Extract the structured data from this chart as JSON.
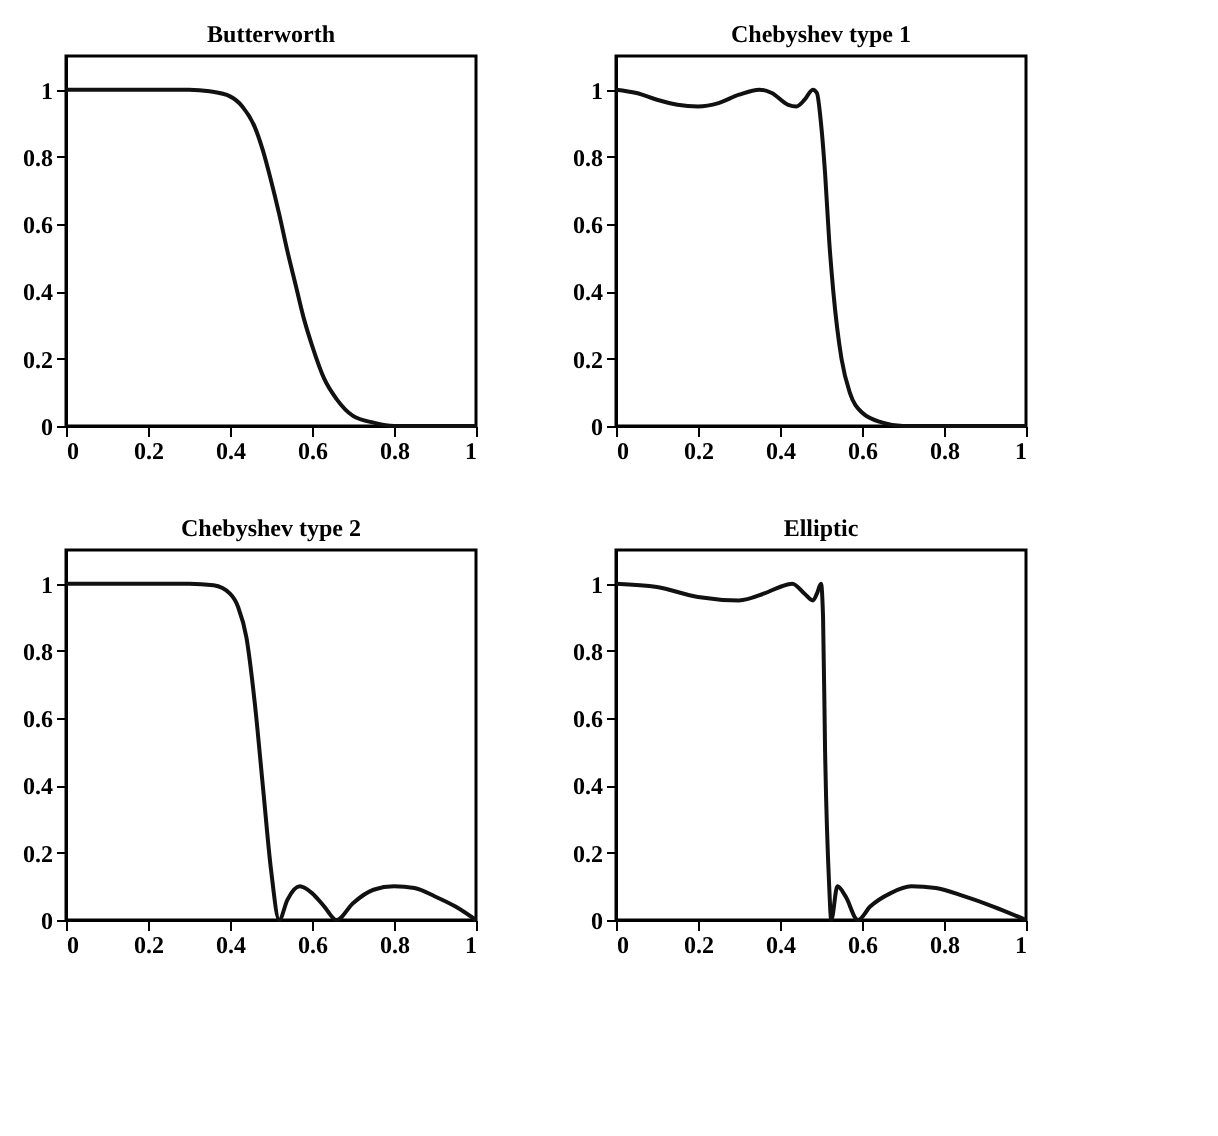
{
  "chart_data": [
    {
      "type": "line",
      "title": "Butterworth",
      "color": "#111111",
      "grid": false,
      "xlim": [
        0,
        1
      ],
      "ylim": [
        0,
        1.1
      ],
      "xticks": [
        0,
        0.2,
        0.4,
        0.6,
        0.8,
        1
      ],
      "yticks": [
        0,
        0.2,
        0.4,
        0.6,
        0.8,
        1
      ],
      "x": [
        0,
        0.1,
        0.2,
        0.3,
        0.35,
        0.4,
        0.43,
        0.46,
        0.48,
        0.5,
        0.52,
        0.54,
        0.56,
        0.58,
        0.6,
        0.63,
        0.66,
        0.7,
        0.75,
        0.8,
        0.9,
        1.0
      ],
      "values": [
        1,
        1,
        1,
        1,
        0.995,
        0.98,
        0.95,
        0.89,
        0.82,
        0.73,
        0.63,
        0.52,
        0.42,
        0.32,
        0.24,
        0.14,
        0.08,
        0.03,
        0.01,
        0,
        0,
        0
      ]
    },
    {
      "type": "line",
      "title": "Chebyshev type 1",
      "color": "#111111",
      "grid": false,
      "xlim": [
        0,
        1
      ],
      "ylim": [
        0,
        1.1
      ],
      "xticks": [
        0,
        0.2,
        0.4,
        0.6,
        0.8,
        1
      ],
      "yticks": [
        0,
        0.2,
        0.4,
        0.6,
        0.8,
        1
      ],
      "x": [
        0,
        0.05,
        0.1,
        0.15,
        0.2,
        0.25,
        0.3,
        0.35,
        0.38,
        0.42,
        0.44,
        0.46,
        0.48,
        0.49,
        0.5,
        0.51,
        0.52,
        0.53,
        0.55,
        0.57,
        0.6,
        0.65,
        0.7,
        1
      ],
      "values": [
        1,
        0.99,
        0.97,
        0.955,
        0.95,
        0.96,
        0.985,
        1,
        0.99,
        0.955,
        0.95,
        0.97,
        1,
        0.99,
        0.9,
        0.75,
        0.55,
        0.4,
        0.2,
        0.1,
        0.04,
        0.01,
        0,
        0
      ]
    },
    {
      "type": "line",
      "title": "Chebyshev type 2",
      "color": "#111111",
      "grid": false,
      "xlim": [
        0,
        1
      ],
      "ylim": [
        0,
        1.1
      ],
      "xticks": [
        0,
        0.2,
        0.4,
        0.6,
        0.8,
        1
      ],
      "yticks": [
        0,
        0.2,
        0.4,
        0.6,
        0.8,
        1
      ],
      "x": [
        0,
        0.3,
        0.36,
        0.4,
        0.42,
        0.44,
        0.46,
        0.48,
        0.5,
        0.52,
        0.54,
        0.57,
        0.6,
        0.63,
        0.66,
        0.7,
        0.75,
        0.8,
        0.85,
        0.9,
        0.95,
        1
      ],
      "values": [
        1,
        1,
        0.995,
        0.97,
        0.93,
        0.84,
        0.65,
        0.4,
        0.15,
        0,
        0.06,
        0.1,
        0.08,
        0.04,
        0,
        0.05,
        0.09,
        0.1,
        0.095,
        0.07,
        0.04,
        0
      ]
    },
    {
      "type": "line",
      "title": "Elliptic",
      "color": "#111111",
      "grid": false,
      "xlim": [
        0,
        1
      ],
      "ylim": [
        0,
        1.1
      ],
      "xticks": [
        0,
        0.2,
        0.4,
        0.6,
        0.8,
        1
      ],
      "yticks": [
        0,
        0.2,
        0.4,
        0.6,
        0.8,
        1
      ],
      "x": [
        0,
        0.1,
        0.2,
        0.3,
        0.36,
        0.4,
        0.43,
        0.46,
        0.48,
        0.49,
        0.5,
        0.505,
        0.51,
        0.52,
        0.525,
        0.54,
        0.56,
        0.59,
        0.62,
        0.67,
        0.72,
        0.78,
        0.85,
        0.92,
        1
      ],
      "values": [
        1,
        0.99,
        0.96,
        0.95,
        0.97,
        0.99,
        1,
        0.97,
        0.95,
        0.97,
        1,
        0.9,
        0.5,
        0.1,
        0,
        0.1,
        0.07,
        0,
        0.04,
        0.08,
        0.1,
        0.095,
        0.07,
        0.04,
        0
      ]
    }
  ]
}
